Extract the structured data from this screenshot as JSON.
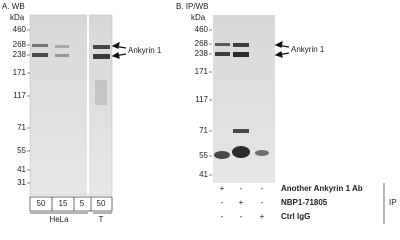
{
  "panel_a": {
    "title": "A. WB",
    "unit": "kDa",
    "markers": [
      "460",
      "268",
      "238",
      "171",
      "117",
      "71",
      "55",
      "41",
      "31"
    ],
    "target": "Ankyrin 1",
    "lanes": [
      "50",
      "15",
      "5",
      "50"
    ],
    "groups": [
      "HeLa",
      "T"
    ]
  },
  "panel_b": {
    "title": "B. IP/WB",
    "unit": "kDa",
    "markers": [
      "460",
      "268",
      "238",
      "171",
      "117",
      "71",
      "55",
      "41"
    ],
    "target": "Ankyrin 1",
    "rows": [
      {
        "label": "Another Ankyrin 1 Ab",
        "signs": [
          "+",
          "-",
          "-"
        ]
      },
      {
        "label": "NBP1-71805",
        "signs": [
          "-",
          "+",
          "-"
        ]
      },
      {
        "label": "Ctrl IgG",
        "signs": [
          "-",
          "-",
          "+"
        ]
      }
    ],
    "side_label": "IP"
  }
}
